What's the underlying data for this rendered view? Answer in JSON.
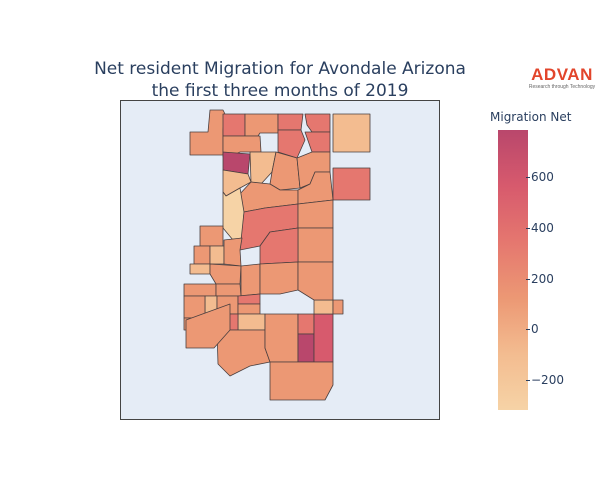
{
  "title": {
    "line1": "Net resident Migration for Avondale Arizona",
    "line2": "the first three months of 2019"
  },
  "logo": {
    "name": "ADVAN",
    "tagline": "Research through Technology"
  },
  "colorbar": {
    "title": "Migration Net",
    "range": [
      -310,
      780
    ],
    "ticks": [
      "600",
      "400",
      "200",
      "0",
      "−200"
    ],
    "colors": [
      "#f6d3a6",
      "#f3bc90",
      "#ec9874",
      "#e5776f",
      "#d75a6d",
      "#b9476c"
    ]
  },
  "map": {
    "background": "#e5ecf6",
    "border_color": "#444444"
  }
}
